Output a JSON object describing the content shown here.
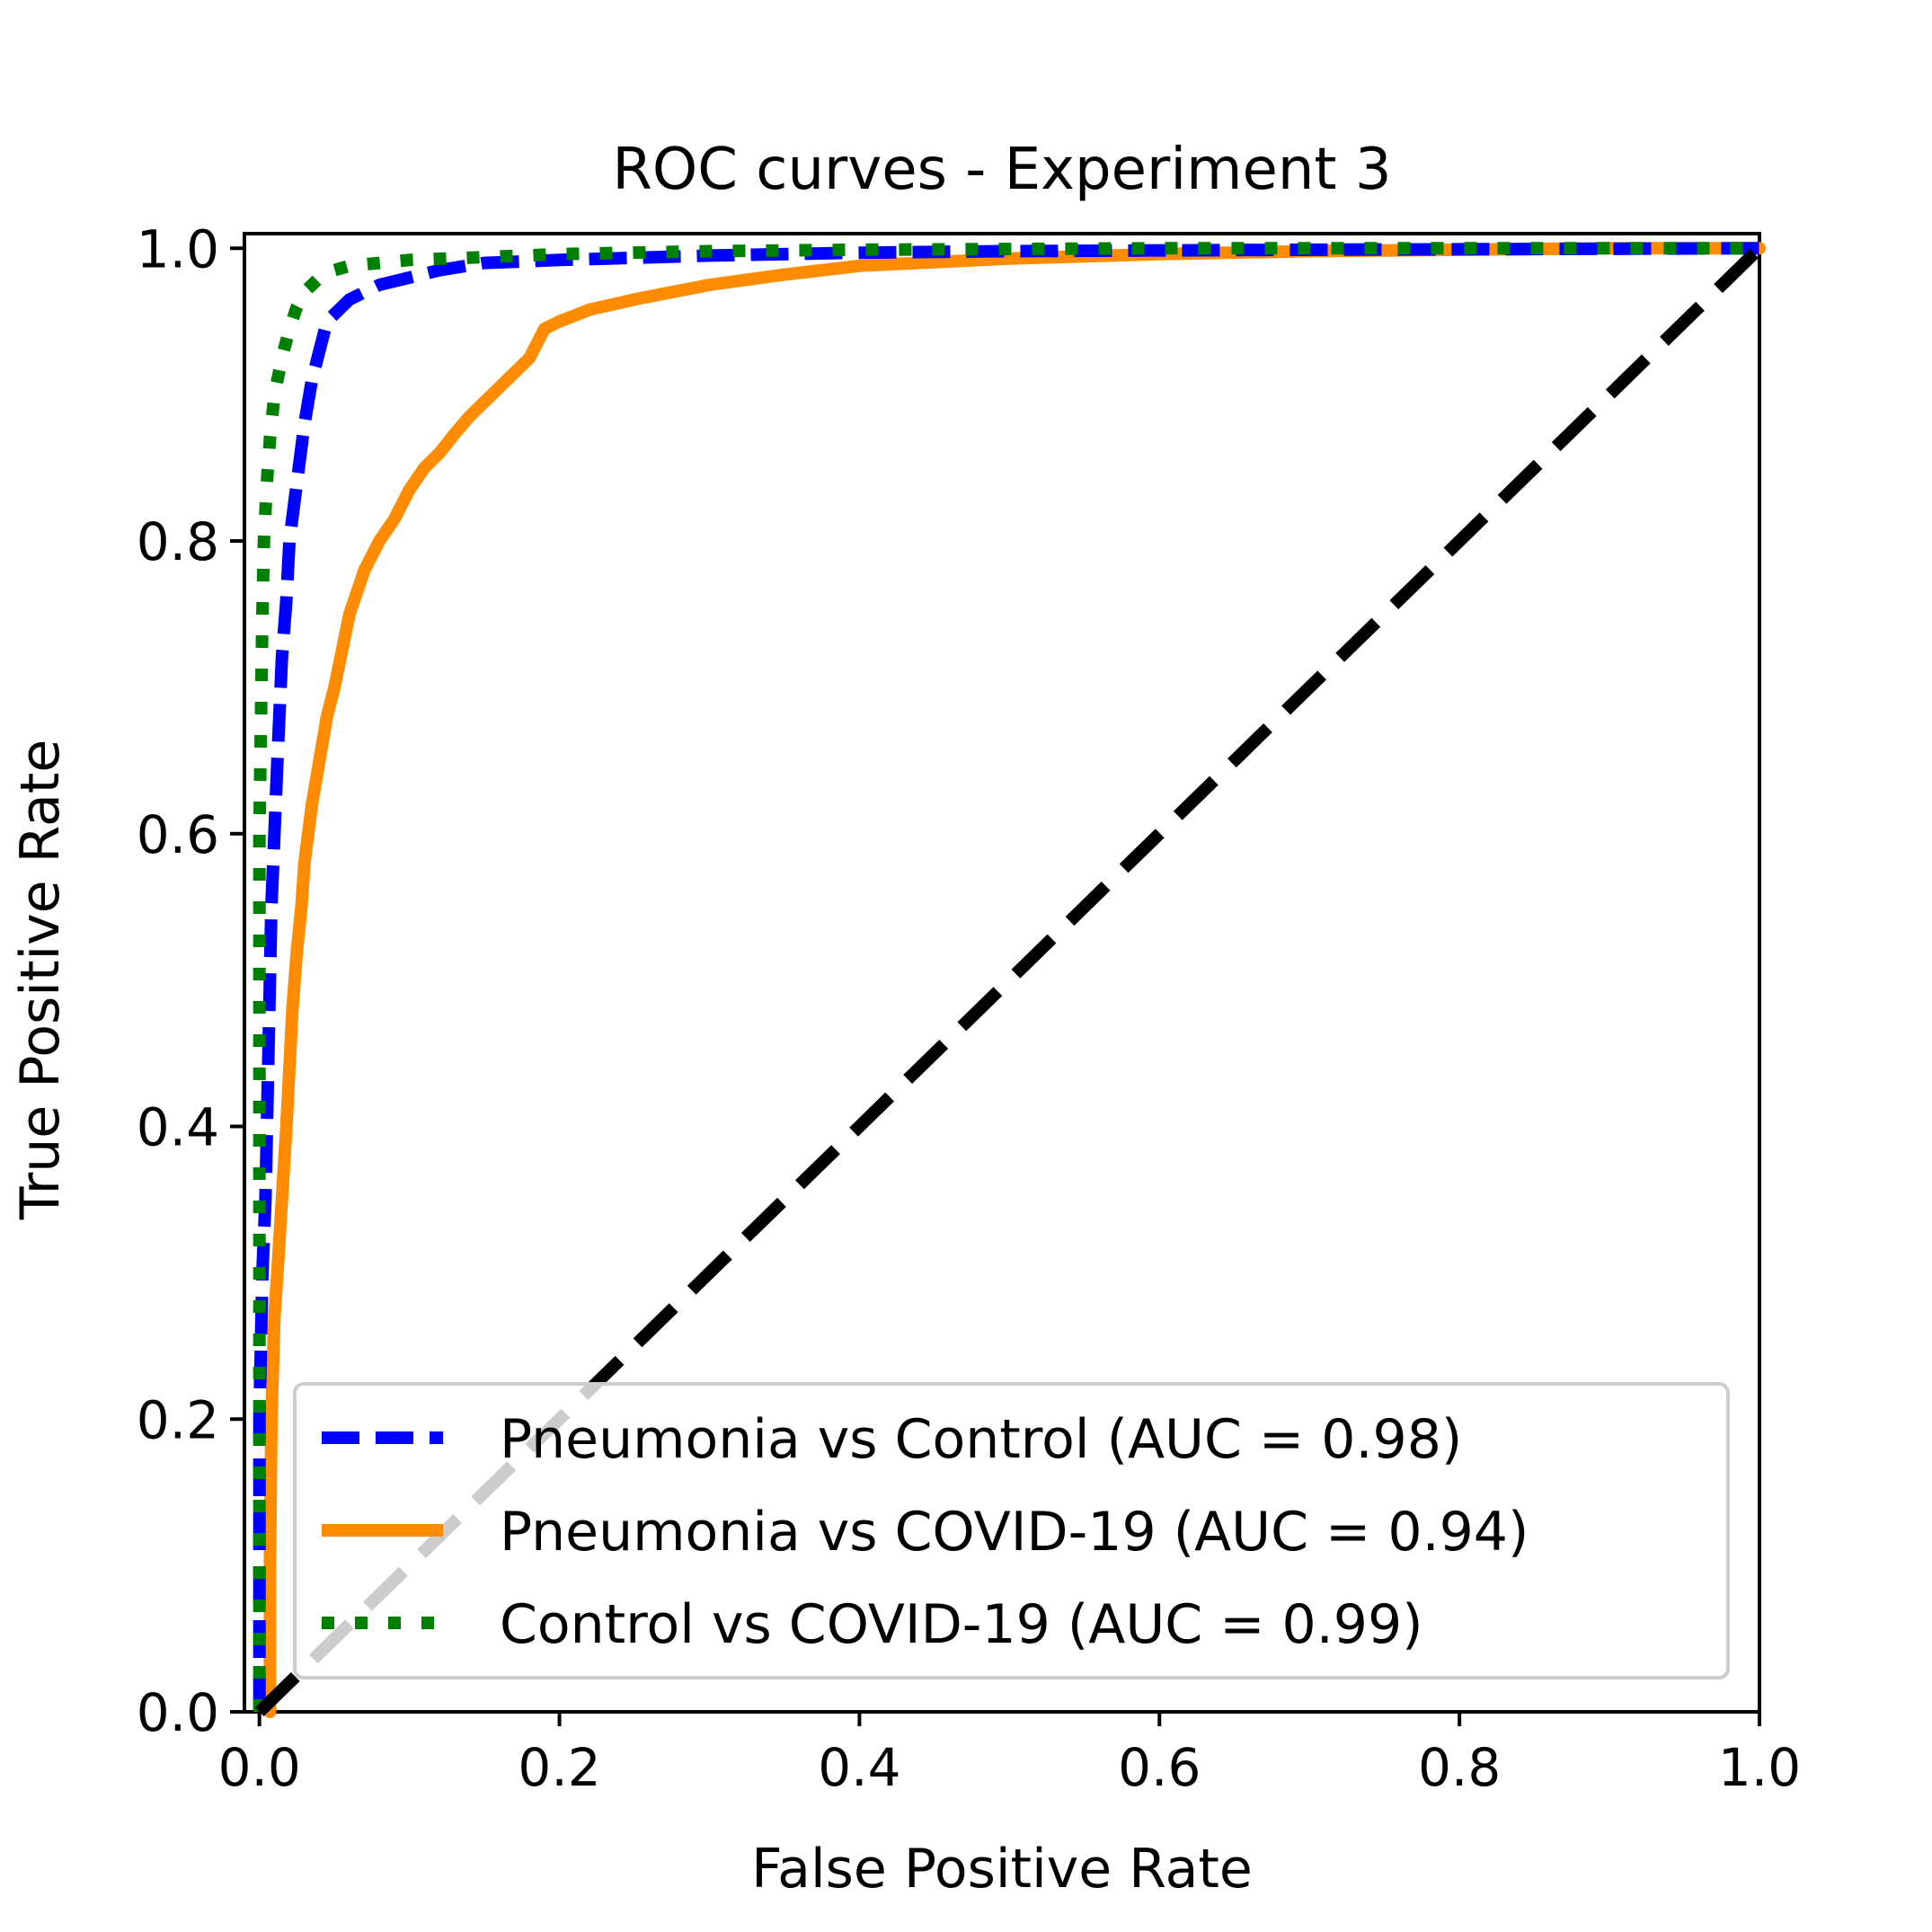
{
  "colors": {
    "pneumonia_control": "#0000ff",
    "pneumonia_covid": "#ff8c00",
    "control_covid": "#008000",
    "chance": "#000000",
    "legend_border": "#cccccc"
  },
  "chart_data": {
    "type": "line",
    "title": "ROC curves - Experiment 3",
    "xlabel": "False Positive Rate",
    "ylabel": "True Positive Rate",
    "xlim": [
      -0.01,
      1.0
    ],
    "ylim": [
      0.0,
      1.01
    ],
    "xticks": [
      "0.0",
      "0.2",
      "0.4",
      "0.6",
      "0.8",
      "1.0"
    ],
    "yticks": [
      "0.0",
      "0.2",
      "0.4",
      "0.6",
      "0.8",
      "1.0"
    ],
    "legend_position": "lower-right",
    "series": [
      {
        "name": "Pneumonia vs Control (AUC = 0.98)",
        "color_key": "pneumonia_control",
        "style": "dashed",
        "x": [
          0.0,
          0.0,
          0.002,
          0.004,
          0.006,
          0.008,
          0.01,
          0.012,
          0.015,
          0.018,
          0.02,
          0.025,
          0.03,
          0.035,
          0.04,
          0.045,
          0.05,
          0.06,
          0.07,
          0.08,
          0.1,
          0.12,
          0.15,
          0.2,
          0.3,
          0.4,
          0.5,
          0.7,
          1.0
        ],
        "y": [
          0.0,
          0.2,
          0.3,
          0.35,
          0.45,
          0.55,
          0.6,
          0.65,
          0.72,
          0.76,
          0.8,
          0.84,
          0.88,
          0.91,
          0.93,
          0.95,
          0.955,
          0.965,
          0.97,
          0.975,
          0.98,
          0.985,
          0.99,
          0.992,
          0.995,
          0.997,
          0.998,
          0.999,
          1.0
        ]
      },
      {
        "name": "Pneumonia vs COVID-19 (AUC = 0.94)",
        "color_key": "pneumonia_covid",
        "style": "solid",
        "x": [
          0.007,
          0.007,
          0.008,
          0.01,
          0.012,
          0.015,
          0.018,
          0.02,
          0.022,
          0.025,
          0.028,
          0.03,
          0.035,
          0.04,
          0.045,
          0.05,
          0.06,
          0.07,
          0.08,
          0.09,
          0.1,
          0.11,
          0.12,
          0.13,
          0.14,
          0.15,
          0.16,
          0.17,
          0.18,
          0.185,
          0.19,
          0.2,
          0.22,
          0.25,
          0.3,
          0.35,
          0.4,
          0.5,
          0.6,
          0.7,
          0.8,
          0.9,
          1.0
        ],
        "y": [
          0.0,
          0.1,
          0.2,
          0.27,
          0.3,
          0.35,
          0.4,
          0.44,
          0.48,
          0.52,
          0.55,
          0.58,
          0.62,
          0.65,
          0.68,
          0.7,
          0.75,
          0.78,
          0.8,
          0.815,
          0.835,
          0.85,
          0.86,
          0.873,
          0.885,
          0.895,
          0.905,
          0.915,
          0.925,
          0.935,
          0.945,
          0.95,
          0.958,
          0.965,
          0.975,
          0.982,
          0.988,
          0.993,
          0.996,
          0.998,
          0.999,
          1.0,
          1.0
        ]
      },
      {
        "name": "Control vs COVID-19 (AUC = 0.99)",
        "color_key": "control_covid",
        "style": "dotted",
        "x": [
          0.0,
          0.0,
          0.0,
          0.002,
          0.003,
          0.005,
          0.007,
          0.01,
          0.015,
          0.02,
          0.025,
          0.03,
          0.04,
          0.05,
          0.06,
          0.08,
          0.1,
          0.15,
          0.2,
          0.3,
          0.4,
          0.6,
          1.0
        ],
        "y": [
          0.0,
          0.2,
          0.6,
          0.75,
          0.8,
          0.84,
          0.87,
          0.9,
          0.925,
          0.945,
          0.96,
          0.97,
          0.98,
          0.985,
          0.988,
          0.99,
          0.992,
          0.994,
          0.996,
          0.998,
          0.999,
          1.0,
          1.0
        ]
      },
      {
        "name": "chance",
        "color_key": "chance",
        "style": "dashed-thick",
        "x": [
          0.0,
          1.0
        ],
        "y": [
          0.0,
          1.0
        ]
      }
    ]
  }
}
